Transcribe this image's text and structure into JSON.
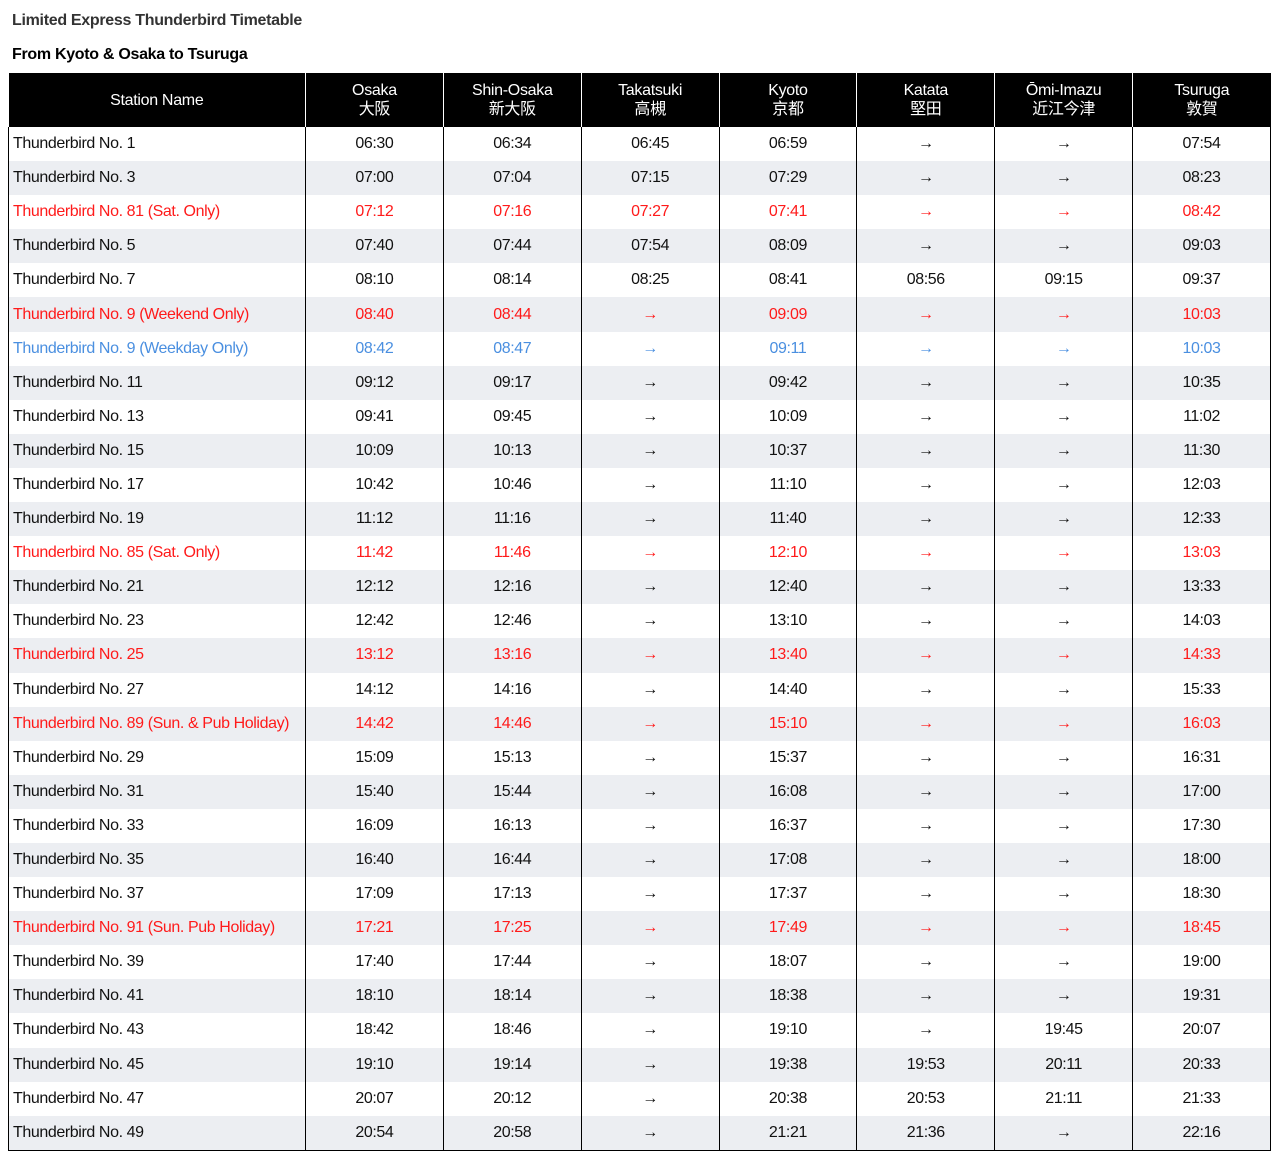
{
  "header": {
    "title": "Limited Express Thunderbird Timetable",
    "subtitle": "From Kyoto & Osaka to Tsuruga"
  },
  "table": {
    "columns": [
      {
        "en": "Station Name"
      },
      {
        "en": "Osaka",
        "ja": "大阪"
      },
      {
        "en": "Shin-Osaka",
        "ja": "新大阪"
      },
      {
        "en": "Takatsuki",
        "ja": "高槻"
      },
      {
        "en": "Kyoto",
        "ja": "京都"
      },
      {
        "en": "Katata",
        "ja": "堅田"
      },
      {
        "en": "Ōmi-Imazu",
        "ja": "近江今津"
      },
      {
        "en": "Tsuruga",
        "ja": "敦賀"
      }
    ],
    "rows": [
      {
        "cells": [
          "Thunderbird No. 1",
          "06:30",
          "06:34",
          "06:45",
          "06:59",
          "→",
          "→",
          "07:54"
        ],
        "color": "#111111"
      },
      {
        "cells": [
          "Thunderbird No. 3",
          "07:00",
          "07:04",
          "07:15",
          "07:29",
          "→",
          "→",
          "08:23"
        ],
        "color": "#111111"
      },
      {
        "cells": [
          "Thunderbird No. 81 (Sat. Only)",
          "07:12",
          "07:16",
          "07:27",
          "07:41",
          "→",
          "→",
          "08:42"
        ],
        "color": "#ff1a1a"
      },
      {
        "cells": [
          "Thunderbird No. 5",
          "07:40",
          "07:44",
          "07:54",
          "08:09",
          "→",
          "→",
          "09:03"
        ],
        "color": "#111111"
      },
      {
        "cells": [
          "Thunderbird No. 7",
          "08:10",
          "08:14",
          "08:25",
          "08:41",
          "08:56",
          "09:15",
          "09:37"
        ],
        "color": "#111111"
      },
      {
        "cells": [
          "Thunderbird No. 9 (Weekend Only)",
          "08:40",
          "08:44",
          "→",
          "09:09",
          "→",
          "→",
          "10:03"
        ],
        "color": "#ff1a1a"
      },
      {
        "cells": [
          "Thunderbird No. 9 (Weekday Only)",
          "08:42",
          "08:47",
          "→",
          "09:11",
          "→",
          "→",
          "10:03"
        ],
        "color": "#4a8fe0"
      },
      {
        "cells": [
          "Thunderbird No. 11",
          "09:12",
          "09:17",
          "→",
          "09:42",
          "→",
          "→",
          "10:35"
        ],
        "color": "#111111"
      },
      {
        "cells": [
          "Thunderbird No. 13",
          "09:41",
          "09:45",
          "→",
          "10:09",
          "→",
          "→",
          "11:02"
        ],
        "color": "#111111"
      },
      {
        "cells": [
          "Thunderbird No. 15",
          "10:09",
          "10:13",
          "→",
          "10:37",
          "→",
          "→",
          "11:30"
        ],
        "color": "#111111"
      },
      {
        "cells": [
          "Thunderbird No. 17",
          "10:42",
          "10:46",
          "→",
          "11:10",
          "→",
          "→",
          "12:03"
        ],
        "color": "#111111"
      },
      {
        "cells": [
          "Thunderbird No. 19",
          "11:12",
          "11:16",
          "→",
          "11:40",
          "→",
          "→",
          "12:33"
        ],
        "color": "#111111"
      },
      {
        "cells": [
          "Thunderbird No. 85 (Sat. Only)",
          "11:42",
          "11:46",
          "→",
          "12:10",
          "→",
          "→",
          "13:03"
        ],
        "color": "#ff1a1a"
      },
      {
        "cells": [
          "Thunderbird No. 21",
          "12:12",
          "12:16",
          "→",
          "12:40",
          "→",
          "→",
          "13:33"
        ],
        "color": "#111111"
      },
      {
        "cells": [
          "Thunderbird No. 23",
          "12:42",
          "12:46",
          "→",
          "13:10",
          "→",
          "→",
          "14:03"
        ],
        "color": "#111111"
      },
      {
        "cells": [
          "Thunderbird No. 25",
          "13:12",
          "13:16",
          "→",
          "13:40",
          "→",
          "→",
          "14:33"
        ],
        "color": "#ff1a1a"
      },
      {
        "cells": [
          "Thunderbird No. 27",
          "14:12",
          "14:16",
          "→",
          "14:40",
          "→",
          "→",
          "15:33"
        ],
        "color": "#111111"
      },
      {
        "cells": [
          "Thunderbird No. 89 (Sun. & Pub Holiday)",
          "14:42",
          "14:46",
          "→",
          "15:10",
          "→",
          "→",
          "16:03"
        ],
        "color": "#ff1a1a"
      },
      {
        "cells": [
          "Thunderbird No. 29",
          "15:09",
          "15:13",
          "→",
          "15:37",
          "→",
          "→",
          "16:31"
        ],
        "color": "#111111"
      },
      {
        "cells": [
          "Thunderbird No. 31",
          "15:40",
          "15:44",
          "→",
          "16:08",
          "→",
          "→",
          "17:00"
        ],
        "color": "#111111"
      },
      {
        "cells": [
          "Thunderbird No. 33",
          "16:09",
          "16:13",
          "→",
          "16:37",
          "→",
          "→",
          "17:30"
        ],
        "color": "#111111"
      },
      {
        "cells": [
          "Thunderbird No. 35",
          "16:40",
          "16:44",
          "→",
          "17:08",
          "→",
          "→",
          "18:00"
        ],
        "color": "#111111"
      },
      {
        "cells": [
          "Thunderbird No. 37",
          "17:09",
          "17:13",
          "→",
          "17:37",
          "→",
          "→",
          "18:30"
        ],
        "color": "#111111"
      },
      {
        "cells": [
          "Thunderbird No. 91 (Sun. Pub Holiday)",
          "17:21",
          "17:25",
          "→",
          "17:49",
          "→",
          "→",
          "18:45"
        ],
        "color": "#ff1a1a"
      },
      {
        "cells": [
          "Thunderbird No. 39",
          "17:40",
          "17:44",
          "→",
          "18:07",
          "→",
          "→",
          "19:00"
        ],
        "color": "#111111"
      },
      {
        "cells": [
          "Thunderbird No. 41",
          "18:10",
          "18:14",
          "→",
          "18:38",
          "→",
          "→",
          "19:31"
        ],
        "color": "#111111"
      },
      {
        "cells": [
          "Thunderbird No. 43",
          "18:42",
          "18:46",
          "→",
          "19:10",
          "→",
          "19:45",
          "20:07"
        ],
        "color": "#111111"
      },
      {
        "cells": [
          "Thunderbird No. 45",
          "19:10",
          "19:14",
          "→",
          "19:38",
          "19:53",
          "20:11",
          "20:33"
        ],
        "color": "#111111"
      },
      {
        "cells": [
          "Thunderbird No. 47",
          "20:07",
          "20:12",
          "→",
          "20:38",
          "20:53",
          "21:11",
          "21:33"
        ],
        "color": "#111111"
      },
      {
        "cells": [
          "Thunderbird No. 49",
          "20:54",
          "20:58",
          "→",
          "21:21",
          "21:36",
          "→",
          "22:16"
        ],
        "color": "#111111"
      }
    ]
  }
}
